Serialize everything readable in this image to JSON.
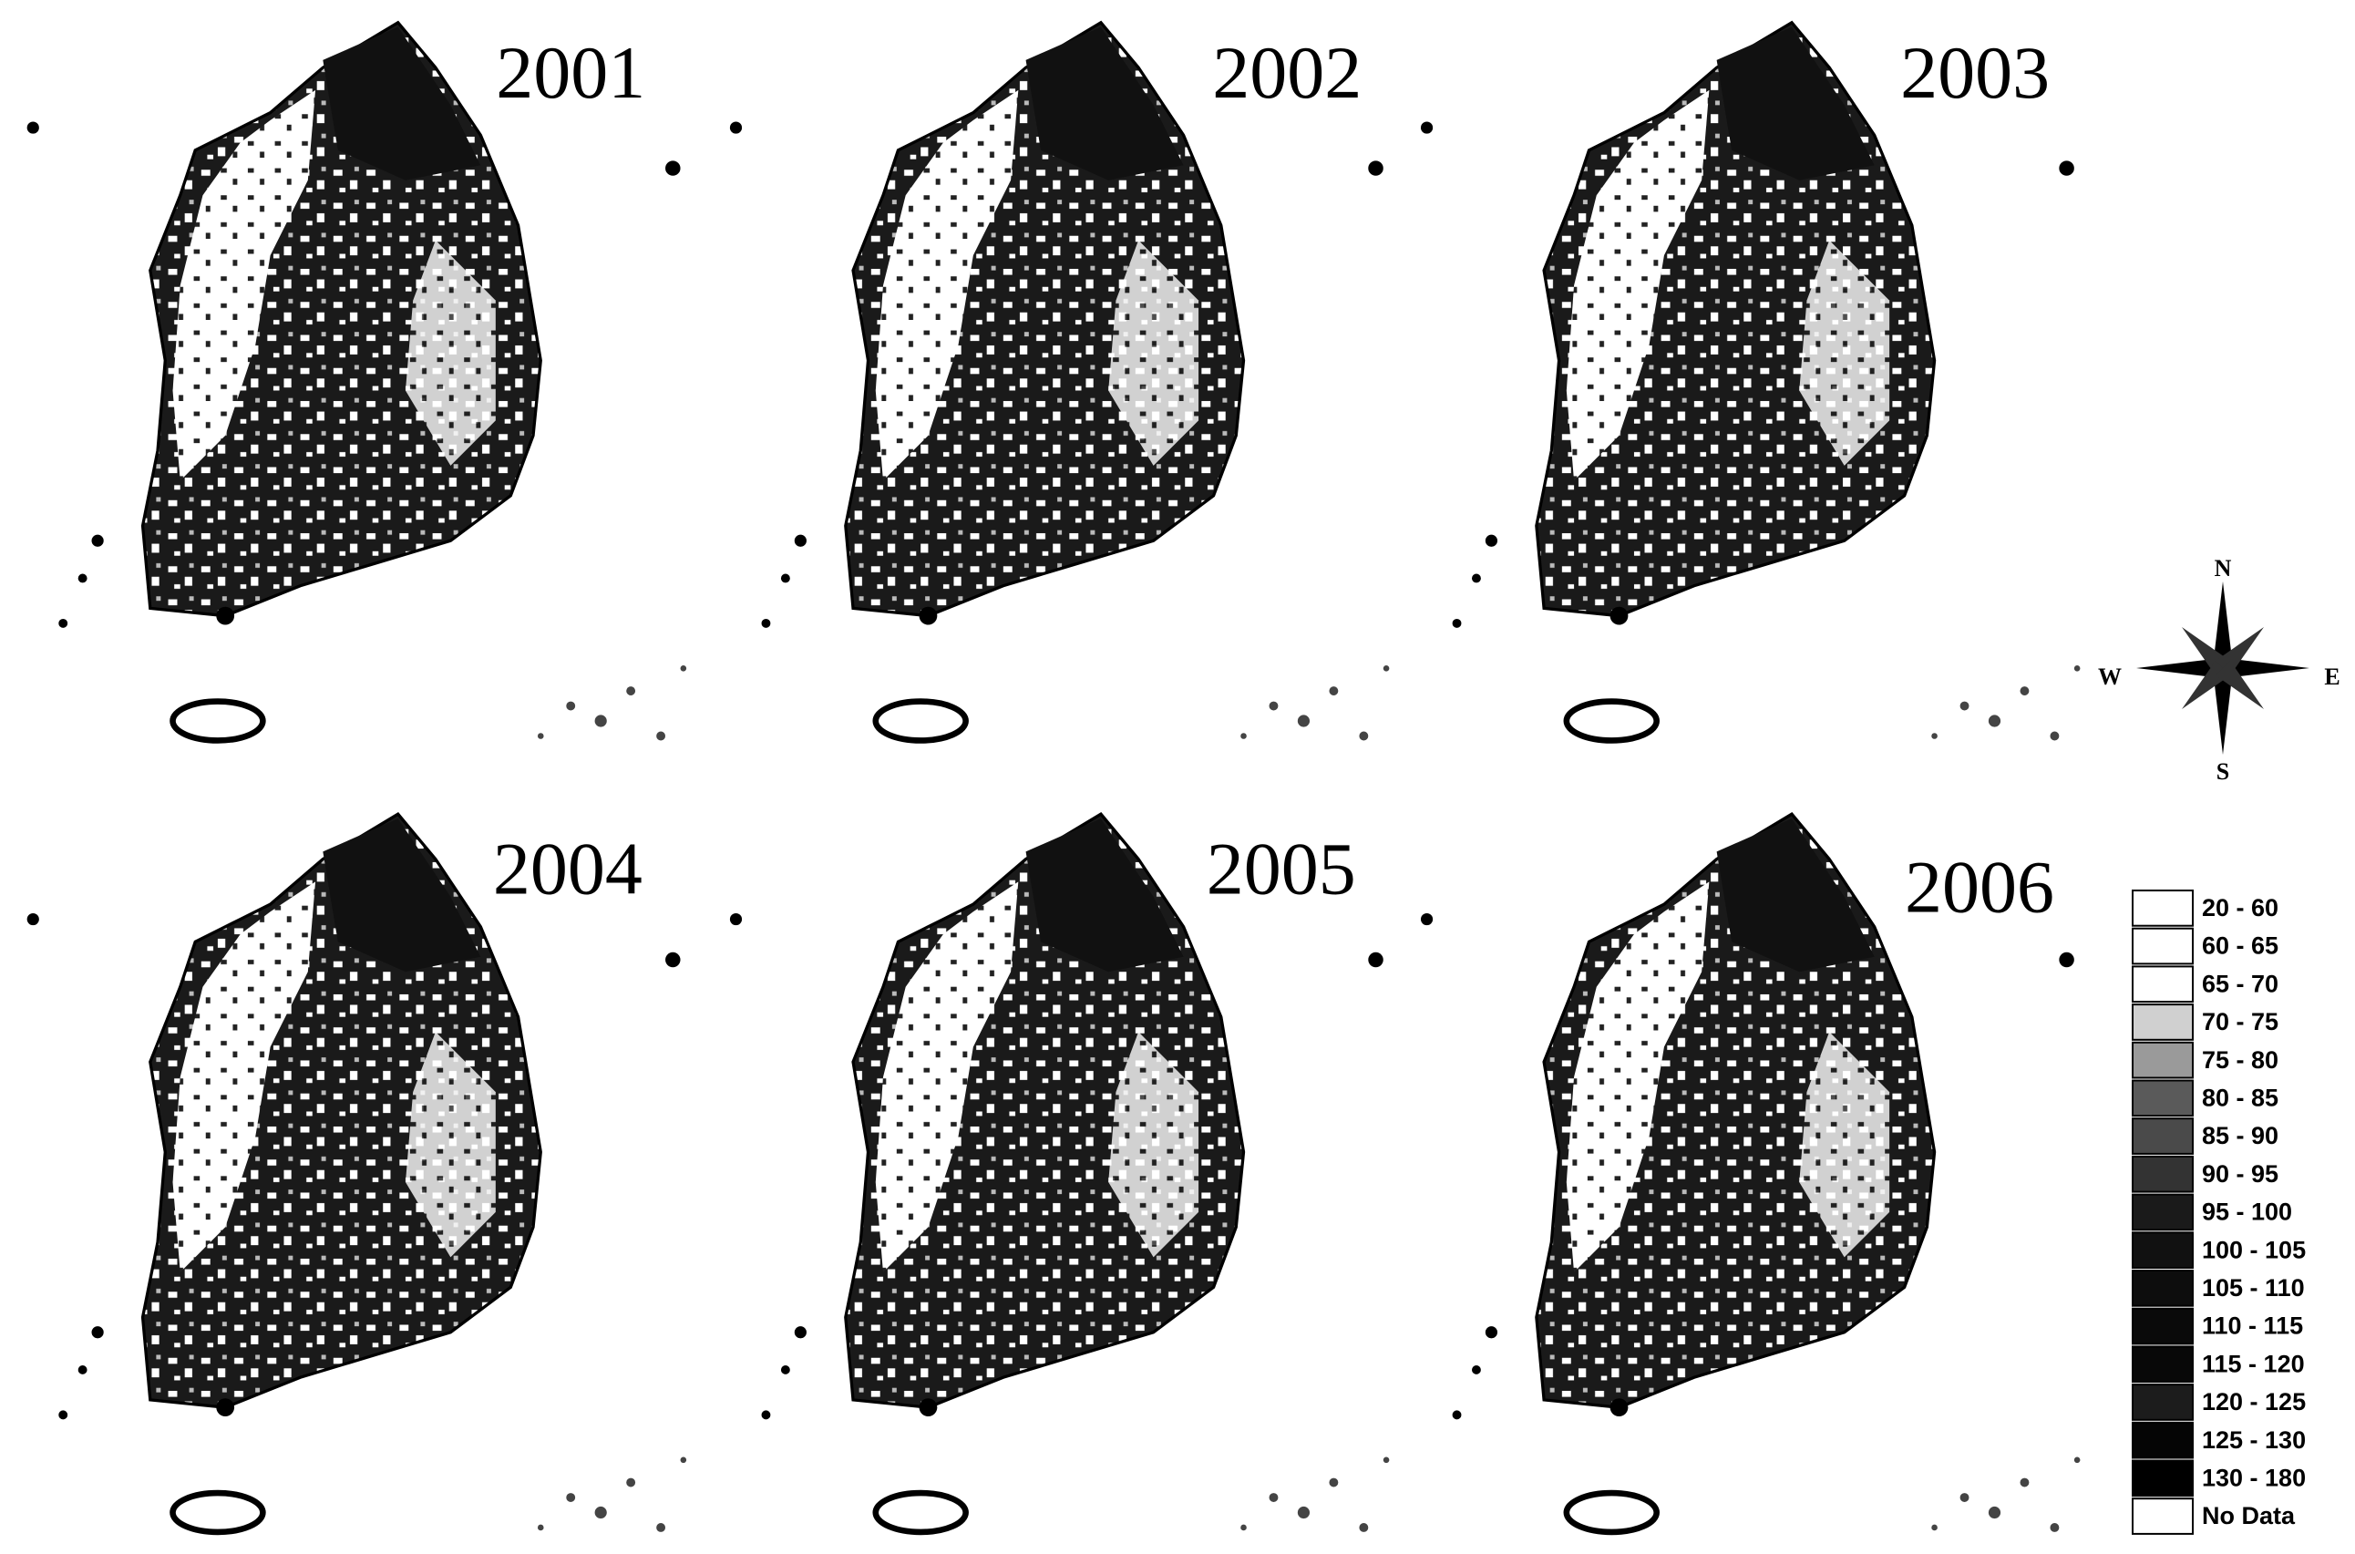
{
  "panels": [
    {
      "year": "2001"
    },
    {
      "year": "2002"
    },
    {
      "year": "2003"
    },
    {
      "year": "2004"
    },
    {
      "year": "2005"
    },
    {
      "year": "2006"
    }
  ],
  "compass": {
    "north": "N",
    "south": "S",
    "east": "E",
    "west": "W"
  },
  "legend": [
    {
      "label": "20 - 60",
      "color": "#ffffff"
    },
    {
      "label": "60 - 65",
      "color": "#ffffff"
    },
    {
      "label": "65 - 70",
      "color": "#ffffff"
    },
    {
      "label": "70 - 75",
      "color": "#d0d0d0"
    },
    {
      "label": "75 - 80",
      "color": "#9a9a9a"
    },
    {
      "label": "80 - 85",
      "color": "#5a5a5a"
    },
    {
      "label": "85 - 90",
      "color": "#4a4a4a"
    },
    {
      "label": "90 - 95",
      "color": "#333333"
    },
    {
      "label": "95 - 100",
      "color": "#1a1a1a"
    },
    {
      "label": "100 - 105",
      "color": "#111111"
    },
    {
      "label": "105 - 110",
      "color": "#0d0d0d"
    },
    {
      "label": "110 - 115",
      "color": "#0a0a0a"
    },
    {
      "label": "115 - 120",
      "color": "#080808"
    },
    {
      "label": "120 - 125",
      "color": "#1c1c1c"
    },
    {
      "label": "125 - 130",
      "color": "#050505"
    },
    {
      "label": "130 - 180",
      "color": "#000000"
    },
    {
      "label": "No Data",
      "color": "#ffffff"
    }
  ]
}
